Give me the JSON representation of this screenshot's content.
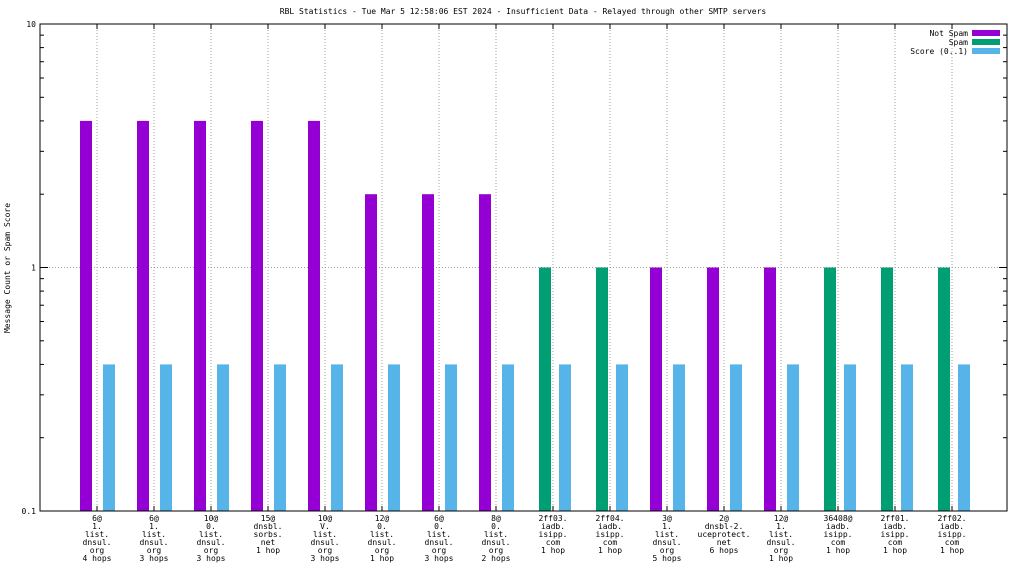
{
  "chart_data": {
    "type": "bar",
    "title": "RBL Statistics - Tue Mar  5 12:58:06 EST 2024 - Insufficient Data - Relayed through other SMTP servers",
    "ylabel": "Message Count or Spam Score",
    "xlabel": "",
    "y_scale": "log",
    "ylim": [
      0.1,
      10
    ],
    "y_ticks": [
      "0.1",
      "1",
      "10"
    ],
    "grid": true,
    "legend_position": "top-right",
    "categories": [
      [
        "6@",
        "1.",
        "list.",
        "dnsul.",
        "org",
        "4 hops"
      ],
      [
        "6@",
        "1.",
        "list.",
        "dnsul.",
        "org",
        "3 hops"
      ],
      [
        "10@",
        "0.",
        "list.",
        "dnsul.",
        "org",
        "3 hops"
      ],
      [
        "15@",
        "dnsbl.",
        "sorbs.",
        "net",
        "1 hop"
      ],
      [
        "10@",
        "V.",
        "list.",
        "dnsul.",
        "org",
        "3 hops"
      ],
      [
        "12@",
        "0.",
        "list.",
        "dnsul.",
        "org",
        "1 hop"
      ],
      [
        "6@",
        "0.",
        "list.",
        "dnsul.",
        "org",
        "3 hops"
      ],
      [
        "8@",
        "0.",
        "list.",
        "dnsul.",
        "org",
        "2 hops"
      ],
      [
        "2ff03.",
        "iadb.",
        "isipp.",
        "com",
        "1 hop"
      ],
      [
        "2ff04.",
        "iadb.",
        "isipp.",
        "com",
        "1 hop"
      ],
      [
        "3@",
        "1.",
        "list.",
        "dnsul.",
        "org",
        "5 hops"
      ],
      [
        "2@",
        "dnsbl-2.",
        "uceprotect.",
        "net",
        "6 hops"
      ],
      [
        "12@",
        "1.",
        "list.",
        "dnsul.",
        "org",
        "1 hop"
      ],
      [
        "36408@",
        "iadb.",
        "isipp.",
        "com",
        "1 hop"
      ],
      [
        "2ff01.",
        "iadb.",
        "isipp.",
        "com",
        "1 hop"
      ],
      [
        "2ff02.",
        "iadb.",
        "isipp.",
        "com",
        "1 hop"
      ]
    ],
    "series": [
      {
        "name": "Not Spam",
        "color": "#9400d3",
        "values": [
          4,
          4,
          4,
          4,
          4,
          2,
          2,
          2,
          null,
          null,
          1,
          1,
          1,
          null,
          null,
          null
        ]
      },
      {
        "name": "Spam",
        "color": "#009e73",
        "values": [
          null,
          null,
          null,
          null,
          null,
          null,
          null,
          null,
          1,
          1,
          null,
          null,
          null,
          1,
          1,
          1
        ]
      },
      {
        "name": "Score (0..1)",
        "color": "#56b4e9",
        "values": [
          0.4,
          0.4,
          0.4,
          0.4,
          0.4,
          0.4,
          0.4,
          0.4,
          0.4,
          0.4,
          0.4,
          0.4,
          0.4,
          0.4,
          0.4,
          0.4
        ]
      }
    ]
  }
}
